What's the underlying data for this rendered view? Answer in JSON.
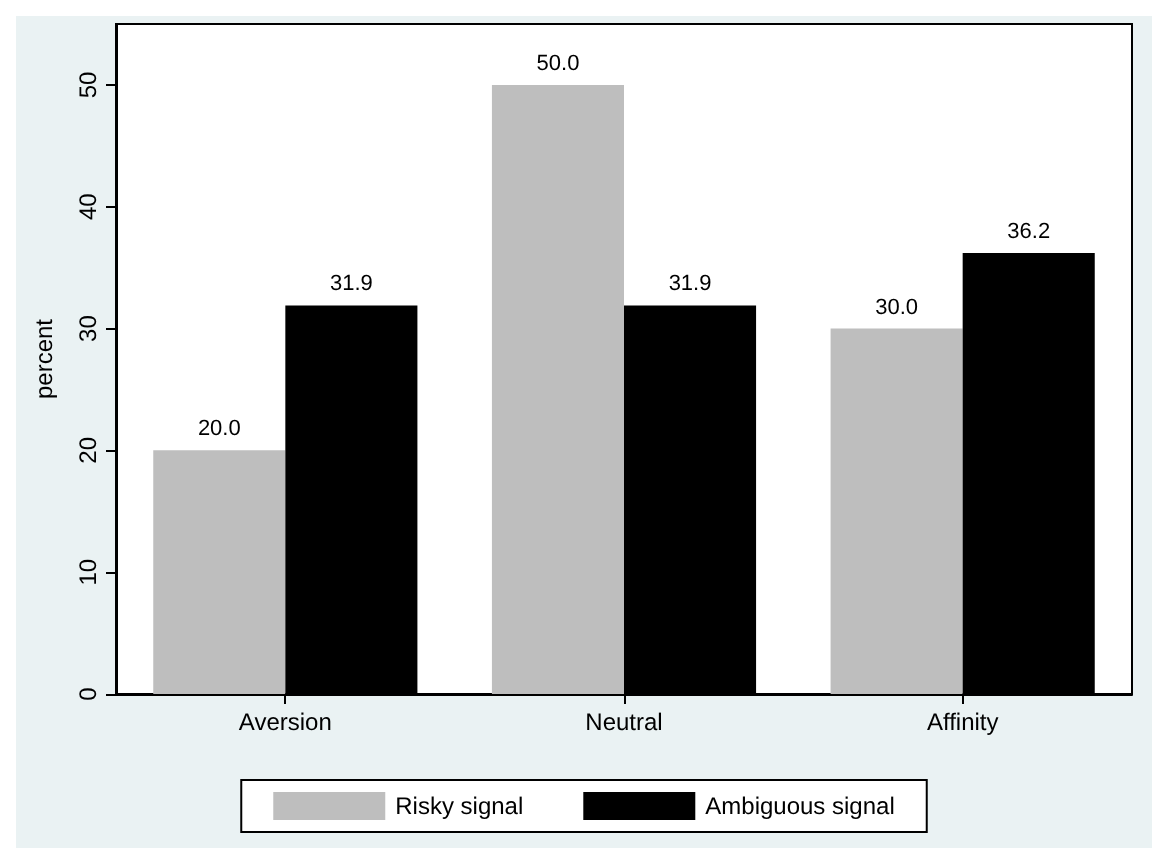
{
  "chart_data": {
    "type": "bar",
    "ylabel": "percent",
    "categories": [
      "Aversion",
      "Neutral",
      "Affinity"
    ],
    "series": [
      {
        "name": "Risky signal",
        "color": "#bebebe",
        "values": [
          20.0,
          50.0,
          30.0
        ],
        "value_labels": [
          "20.0",
          "50.0",
          "30.0"
        ]
      },
      {
        "name": "Ambiguous signal",
        "color": "#000000",
        "values": [
          31.9,
          31.9,
          36.2
        ],
        "value_labels": [
          "31.9",
          "31.9",
          "36.2"
        ]
      }
    ],
    "ylim": [
      0,
      55
    ],
    "yticks": [
      0,
      10,
      20,
      30,
      40,
      50
    ],
    "grid": false,
    "legend": "bottom"
  }
}
